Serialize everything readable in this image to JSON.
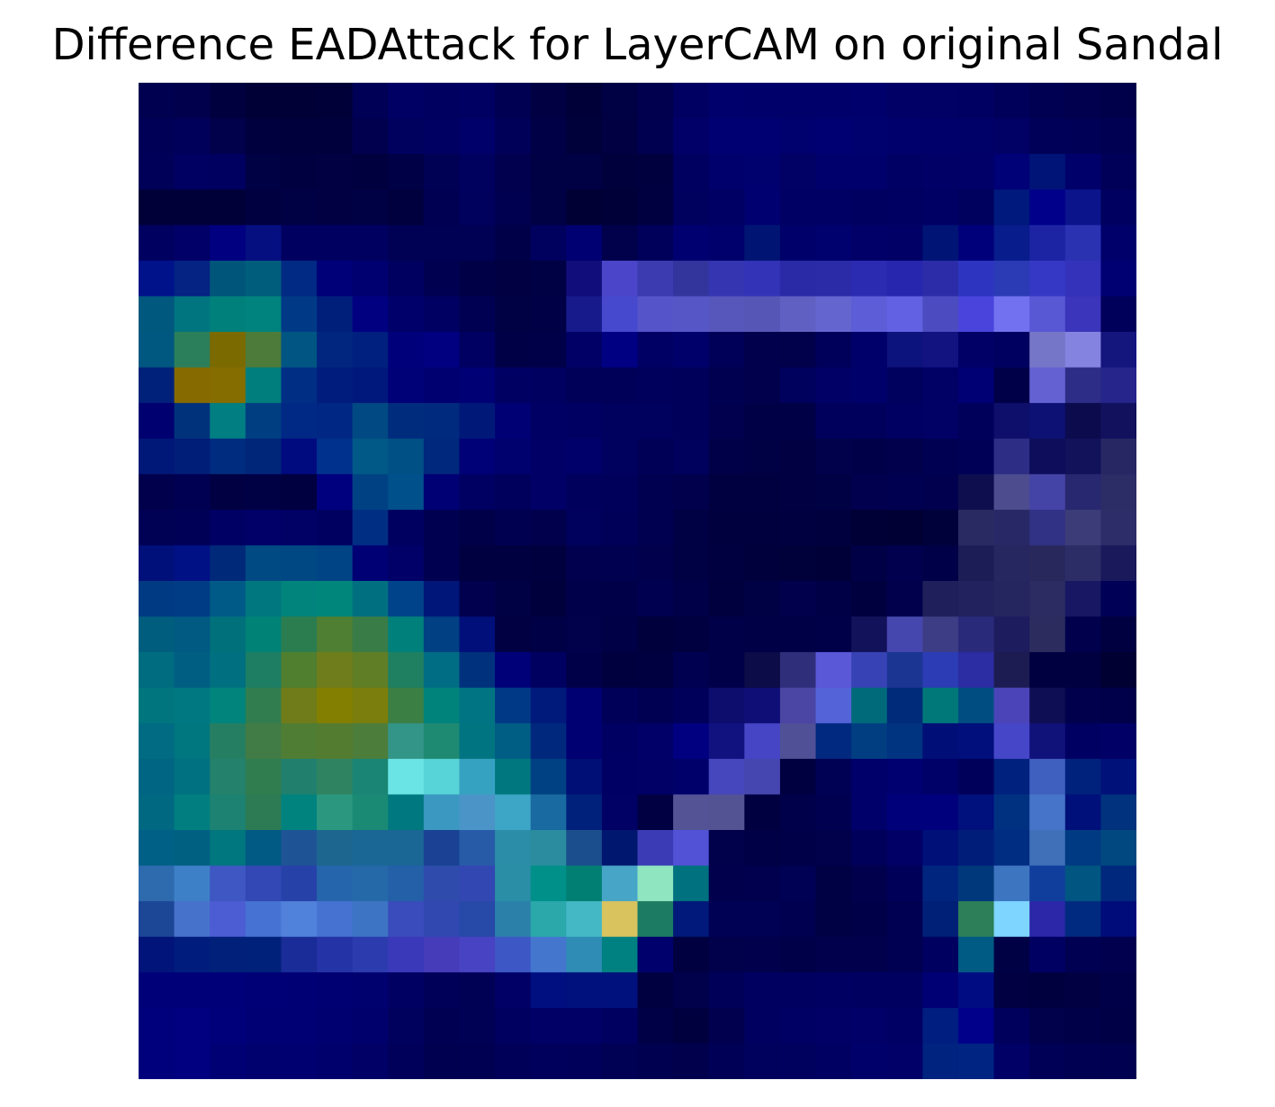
{
  "title": "Difference EADAttack for LayerCAM on original Sandal",
  "colors": {
    "background": "#ffffff",
    "title_text": "#000000"
  },
  "image": {
    "description_source": "saliency-difference heatmap overlay",
    "grid_rows": 28,
    "grid_cols": 28,
    "cells": [
      [
        "#000050",
        "#00004d",
        "#00003f",
        "#000037",
        "#000036",
        "#000039",
        "#000056",
        "#000064",
        "#000060",
        "#000063",
        "#000053",
        "#000043",
        "#000039",
        "#000044",
        "#00004f",
        "#000063",
        "#00006c",
        "#00006b",
        "#00006a",
        "#00006a",
        "#00006c",
        "#000066",
        "#000065",
        "#000062",
        "#00005b",
        "#000053",
        "#00004e",
        "#00004a"
      ],
      [
        "#000056",
        "#00005a",
        "#00004b",
        "#00003e",
        "#00003c",
        "#00003d",
        "#00004f",
        "#00005e",
        "#000062",
        "#00006a",
        "#000059",
        "#000046",
        "#00003b",
        "#000042",
        "#000051",
        "#000068",
        "#000072",
        "#000073",
        "#00006e",
        "#000072",
        "#00006f",
        "#00006c",
        "#00006b",
        "#000069",
        "#000065",
        "#000058",
        "#000056",
        "#000053"
      ],
      [
        "#000058",
        "#000063",
        "#000060",
        "#000044",
        "#000040",
        "#000042",
        "#00003f",
        "#000047",
        "#000055",
        "#00005e",
        "#00004f",
        "#000044",
        "#000044",
        "#00003c",
        "#00003f",
        "#000061",
        "#00006d",
        "#00006f",
        "#000065",
        "#00006d",
        "#00006c",
        "#000064",
        "#000066",
        "#000068",
        "#000077",
        "#001477",
        "#00006b",
        "#000058"
      ],
      [
        "#000039",
        "#000039",
        "#000039",
        "#000041",
        "#000044",
        "#000043",
        "#000044",
        "#00003f",
        "#000052",
        "#00005d",
        "#000050",
        "#000045",
        "#000035",
        "#000039",
        "#000040",
        "#00005f",
        "#000064",
        "#000070",
        "#000064",
        "#000064",
        "#000061",
        "#000062",
        "#000064",
        "#00005e",
        "#00197c",
        "#00008a",
        "#0b148b",
        "#000060"
      ],
      [
        "#000060",
        "#000068",
        "#000080",
        "#050f80",
        "#000061",
        "#000061",
        "#000061",
        "#000054",
        "#000054",
        "#000054",
        "#000049",
        "#00005e",
        "#000072",
        "#00004b",
        "#00005b",
        "#000070",
        "#00006c",
        "#001573",
        "#00006a",
        "#00006e",
        "#000068",
        "#000066",
        "#001475",
        "#00007b",
        "#081c8b",
        "#1d24a3",
        "#2a32b2",
        "#00006b"
      ],
      [
        "#00128a",
        "#042383",
        "#00557a",
        "#005e7c",
        "#002a84",
        "#000078",
        "#000070",
        "#000060",
        "#000051",
        "#000047",
        "#000043",
        "#000044",
        "#110e7b",
        "#4a45c9",
        "#3c3cb0",
        "#33349c",
        "#3535b1",
        "#3233b7",
        "#2a2aa7",
        "#2b2ba8",
        "#2b2bb2",
        "#2626ae",
        "#2c2ca8",
        "#2d35c0",
        "#2a3bb5",
        "#3438c4",
        "#3431ba",
        "#000072"
      ],
      [
        "#00587e",
        "#007580",
        "#00807a",
        "#00837e",
        "#003a87",
        "#001f7b",
        "#000080",
        "#00006b",
        "#000062",
        "#000053",
        "#000044",
        "#000046",
        "#161a8b",
        "#4648cd",
        "#5554c8",
        "#5656c7",
        "#5656bb",
        "#5656b6",
        "#6060c2",
        "#6565cf",
        "#5d5dd8",
        "#6361e3",
        "#4c4cc0",
        "#4a44dd",
        "#7271ef",
        "#5858d5",
        "#3a35ba",
        "#00005b"
      ],
      [
        "#005780",
        "#2b7f5b",
        "#7b6a00",
        "#4c7b3a",
        "#005583",
        "#00267f",
        "#002080",
        "#00007b",
        "#000080",
        "#000062",
        "#000047",
        "#000049",
        "#000066",
        "#000083",
        "#000064",
        "#00006b",
        "#000058",
        "#00004d",
        "#00004b",
        "#00005a",
        "#00006b",
        "#0d137c",
        "#121381",
        "#000067",
        "#000061",
        "#7676c8",
        "#8484e0",
        "#15157e"
      ],
      [
        "#00217a",
        "#866a00",
        "#866d00",
        "#007e7e",
        "#002e85",
        "#001d7e",
        "#00187c",
        "#000077",
        "#000070",
        "#000075",
        "#000063",
        "#000060",
        "#000058",
        "#000058",
        "#00005c",
        "#00005a",
        "#000050",
        "#00004d",
        "#00005d",
        "#000067",
        "#00006b",
        "#00005f",
        "#000065",
        "#000074",
        "#000049",
        "#6462d3",
        "#2d2d88",
        "#25258b"
      ],
      [
        "#000071",
        "#00327b",
        "#007e81",
        "#003e82",
        "#002985",
        "#002783",
        "#004983",
        "#002c7d",
        "#002a7e",
        "#001978",
        "#000075",
        "#000064",
        "#000063",
        "#00005e",
        "#00005f",
        "#00005a",
        "#00004f",
        "#000047",
        "#000047",
        "#00005c",
        "#00005c",
        "#000063",
        "#000065",
        "#00005b",
        "#0e0e6b",
        "#0d1173",
        "#0b0b4e",
        "#11115d"
      ],
      [
        "#001878",
        "#001d78",
        "#002c7f",
        "#002679",
        "#000b80",
        "#00318c",
        "#005986",
        "#004f85",
        "#00287c",
        "#000077",
        "#00006e",
        "#000067",
        "#00006a",
        "#00005f",
        "#000056",
        "#00005d",
        "#000049",
        "#000045",
        "#000043",
        "#00004b",
        "#000049",
        "#00004c",
        "#000053",
        "#000057",
        "#2d2d85",
        "#0d0d5b",
        "#12125b",
        "#272764"
      ],
      [
        "#00004c",
        "#000052",
        "#000043",
        "#000045",
        "#000040",
        "#00007e",
        "#004183",
        "#00508b",
        "#000075",
        "#000062",
        "#00005c",
        "#000066",
        "#00005c",
        "#00005a",
        "#000051",
        "#00004d",
        "#000041",
        "#000040",
        "#000043",
        "#000044",
        "#00004e",
        "#000051",
        "#00004f",
        "#0e0e4e",
        "#4c4c8f",
        "#4444a6",
        "#282870",
        "#2c2c67"
      ],
      [
        "#000054",
        "#000057",
        "#000064",
        "#000068",
        "#000065",
        "#000061",
        "#002e83",
        "#000060",
        "#000050",
        "#000049",
        "#000050",
        "#00004c",
        "#00005d",
        "#000058",
        "#000050",
        "#000045",
        "#00003f",
        "#00003f",
        "#000040",
        "#00003e",
        "#000037",
        "#000035",
        "#00003b",
        "#2a2a63",
        "#282866",
        "#313185",
        "#3c3c79",
        "#2d2d6a"
      ],
      [
        "#00107a",
        "#001085",
        "#00297a",
        "#004a83",
        "#004883",
        "#004486",
        "#000074",
        "#000068",
        "#000051",
        "#000040",
        "#000041",
        "#00003e",
        "#00004f",
        "#000050",
        "#00004d",
        "#000044",
        "#000041",
        "#00003c",
        "#00003b",
        "#000039",
        "#000047",
        "#00004e",
        "#000048",
        "#1c1c57",
        "#262660",
        "#28285d",
        "#2c2c67",
        "#19195c"
      ],
      [
        "#003a82",
        "#003c85",
        "#005a87",
        "#00777e",
        "#00847c",
        "#00867b",
        "#007080",
        "#00438a",
        "#001679",
        "#00004e",
        "#000044",
        "#00003c",
        "#00004a",
        "#000048",
        "#000050",
        "#000048",
        "#00003e",
        "#000045",
        "#00004c",
        "#000047",
        "#00003f",
        "#00004c",
        "#1f1f5b",
        "#22225e",
        "#25255f",
        "#2c2c62",
        "#171764",
        "#000056"
      ],
      [
        "#005d7e",
        "#005a82",
        "#00707b",
        "#008276",
        "#2b7d50",
        "#4f7f32",
        "#3a7c47",
        "#00807b",
        "#004083",
        "#000f79",
        "#000042",
        "#000046",
        "#00004b",
        "#000046",
        "#00003c",
        "#000040",
        "#000048",
        "#000047",
        "#000046",
        "#000048",
        "#12125a",
        "#4646af",
        "#3d3d85",
        "#2a2a7b",
        "#1c1c5f",
        "#2c2c5e",
        "#00004d",
        "#000040"
      ],
      [
        "#006c80",
        "#005e83",
        "#007081",
        "#1d7e64",
        "#4f7f2f",
        "#707d1c",
        "#5f7e26",
        "#1f7f61",
        "#006d85",
        "#00317d",
        "#000079",
        "#000061",
        "#000049",
        "#00003f",
        "#000040",
        "#000051",
        "#000048",
        "#0c0c48",
        "#2e2e7a",
        "#5b58d8",
        "#3743b5",
        "#1b3593",
        "#2c3cb4",
        "#2c2ca3",
        "#1c1c52",
        "#000041",
        "#000040",
        "#000033"
      ],
      [
        "#00757d",
        "#007881",
        "#00847b",
        "#317d50",
        "#707b1a",
        "#837f00",
        "#7b7e0d",
        "#3b7f44",
        "#00837a",
        "#007482",
        "#003a86",
        "#001a7b",
        "#000072",
        "#000059",
        "#000052",
        "#00005a",
        "#0d0d6d",
        "#0e0e76",
        "#4b46a3",
        "#5463d8",
        "#006a7b",
        "#002a7a",
        "#00787a",
        "#004e81",
        "#4b44b8",
        "#0e0e54",
        "#00004c",
        "#00004a"
      ],
      [
        "#006b83",
        "#00767e",
        "#267e62",
        "#417b45",
        "#4f7d34",
        "#547c31",
        "#4d7d3b",
        "#339488",
        "#1f8a72",
        "#007481",
        "#005d83",
        "#00297e",
        "#000072",
        "#000062",
        "#000068",
        "#000080",
        "#11117f",
        "#4545c6",
        "#505096",
        "#00297f",
        "#003e81",
        "#003380",
        "#000f77",
        "#000f7b",
        "#4646c9",
        "#11117a",
        "#000062",
        "#000066"
      ],
      [
        "#006483",
        "#007180",
        "#23816c",
        "#307d50",
        "#21806d",
        "#2f8360",
        "#1b8575",
        "#6ae4e4",
        "#57d4d7",
        "#36a2c2",
        "#00777f",
        "#004183",
        "#000f75",
        "#000064",
        "#000066",
        "#00006a",
        "#4646bd",
        "#4646b0",
        "#000041",
        "#000055",
        "#00006a",
        "#000070",
        "#000069",
        "#00005b",
        "#00217d",
        "#4060c0",
        "#00217c",
        "#00127a"
      ],
      [
        "#006981",
        "#007e80",
        "#1d8271",
        "#2c7b54",
        "#00837f",
        "#2c977f",
        "#1a8a74",
        "#00787f",
        "#3b98c0",
        "#4a94c8",
        "#3da6c6",
        "#1a6aa2",
        "#00217b",
        "#000065",
        "#000043",
        "#535396",
        "#535393",
        "#000041",
        "#00004a",
        "#000051",
        "#00006b",
        "#00007b",
        "#00007d",
        "#00107c",
        "#003181",
        "#4574c8",
        "#00107a",
        "#00327d"
      ],
      [
        "#006086",
        "#006082",
        "#00767f",
        "#005a83",
        "#1e5496",
        "#1c6690",
        "#1a6695",
        "#1a6694",
        "#1a4194",
        "#275ba8",
        "#2b8da8",
        "#2a8c9e",
        "#1b4e8d",
        "#001770",
        "#3b3bb5",
        "#5252d6",
        "#00004b",
        "#000046",
        "#000048",
        "#00004b",
        "#00005b",
        "#000066",
        "#001079",
        "#001d79",
        "#002c82",
        "#3f70b8",
        "#003a82",
        "#00487f"
      ],
      [
        "#2e6aae",
        "#3d80c7",
        "#3e57c2",
        "#3348b5",
        "#2642a8",
        "#2565ab",
        "#2569a9",
        "#2460a8",
        "#2f4cad",
        "#3247b1",
        "#2a8ea6",
        "#00908a",
        "#007f72",
        "#47a5c8",
        "#8ee5bf",
        "#00717f",
        "#00004d",
        "#00004e",
        "#000054",
        "#000045",
        "#00004c",
        "#000059",
        "#00257e",
        "#00387c",
        "#3e75c0",
        "#103e9d",
        "#005681",
        "#00287c"
      ],
      [
        "#1c4696",
        "#4672cc",
        "#4c5cd2",
        "#4673d3",
        "#5182db",
        "#4673d1",
        "#3d74c3",
        "#3a4cbb",
        "#3148b1",
        "#2749a7",
        "#2b80aa",
        "#2aa8aa",
        "#45b8c6",
        "#d8c35e",
        "#1c7b63",
        "#00197a",
        "#000055",
        "#000054",
        "#000050",
        "#000044",
        "#000048",
        "#000053",
        "#002078",
        "#2c7f58",
        "#7ed5ff",
        "#2b27a8",
        "#002a7f",
        "#000c7a"
      ],
      [
        "#001479",
        "#001d7d",
        "#00207a",
        "#00217a",
        "#1a2c97",
        "#2433a6",
        "#2c3bad",
        "#3939b9",
        "#463cba",
        "#4843c2",
        "#3d58c5",
        "#4476ce",
        "#2e8cb5",
        "#008181",
        "#00006d",
        "#000040",
        "#00004b",
        "#00004d",
        "#000049",
        "#00004d",
        "#00004d",
        "#000052",
        "#000061",
        "#005b84",
        "#000045",
        "#000063",
        "#000052",
        "#00004e"
      ],
      [
        "#000078",
        "#000079",
        "#000078",
        "#000076",
        "#000074",
        "#000073",
        "#00006f",
        "#000063",
        "#000058",
        "#000055",
        "#000066",
        "#000f80",
        "#00107c",
        "#00107c",
        "#000040",
        "#00004b",
        "#000059",
        "#000060",
        "#000060",
        "#000063",
        "#000061",
        "#000061",
        "#000074",
        "#000d82",
        "#000043",
        "#00003f",
        "#000043",
        "#000048"
      ],
      [
        "#00007c",
        "#000080",
        "#00007b",
        "#000075",
        "#000074",
        "#000071",
        "#00006c",
        "#00005d",
        "#000053",
        "#000054",
        "#000061",
        "#000067",
        "#000066",
        "#000060",
        "#000047",
        "#00003f",
        "#00004f",
        "#000060",
        "#000064",
        "#000066",
        "#000068",
        "#000064",
        "#001d80",
        "#00008a",
        "#00005c",
        "#00004b",
        "#000049",
        "#000047"
      ],
      [
        "#00007c",
        "#000080",
        "#000075",
        "#00006f",
        "#000070",
        "#00006c",
        "#000067",
        "#00005b",
        "#000051",
        "#000052",
        "#000059",
        "#00005c",
        "#00005a",
        "#000055",
        "#000050",
        "#00004d",
        "#000056",
        "#00005d",
        "#00005f",
        "#000063",
        "#00006a",
        "#000068",
        "#00237f",
        "#002481",
        "#000066",
        "#000057",
        "#000052",
        "#000050"
      ]
    ]
  }
}
